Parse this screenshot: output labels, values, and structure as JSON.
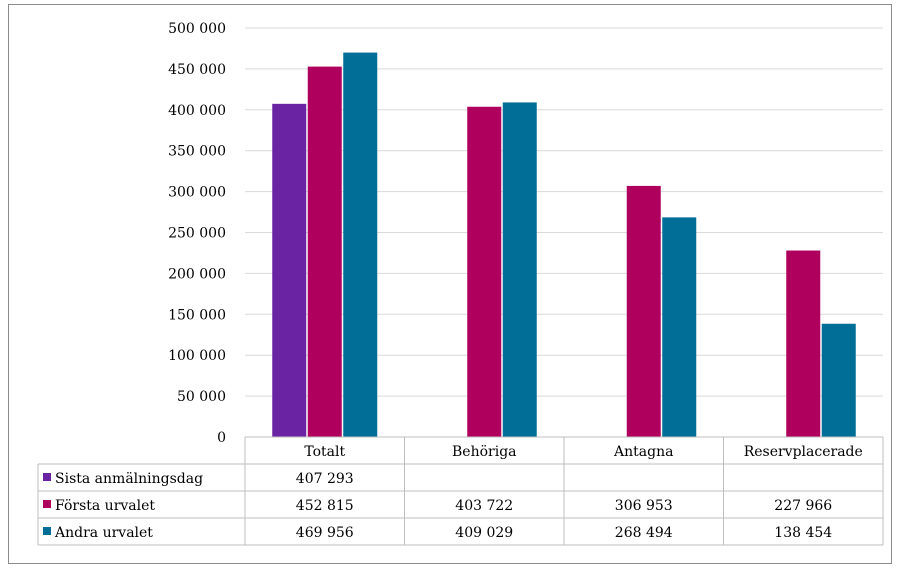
{
  "colors": {
    "grid": "#d9d9d9",
    "table_border": "#bfbfbf"
  },
  "chart_data": {
    "type": "bar",
    "categories": [
      "Totalt",
      "Behöriga",
      "Antagna",
      "Reservplacerade"
    ],
    "ylim": [
      0,
      500000
    ],
    "y_ticks": [
      0,
      50000,
      100000,
      150000,
      200000,
      250000,
      300000,
      350000,
      400000,
      450000,
      500000
    ],
    "y_tick_labels": [
      "0",
      "50 000",
      "100 000",
      "150 000",
      "200 000",
      "250 000",
      "300 000",
      "350 000",
      "400 000",
      "450 000",
      "500 000"
    ],
    "grid": true,
    "legend": "data-table",
    "series": [
      {
        "name": "Sista anmälningsdag",
        "color": "#6a23a3",
        "values": [
          407293,
          null,
          null,
          null
        ],
        "labels": [
          "407 293",
          "",
          "",
          ""
        ]
      },
      {
        "name": "Första urvalet",
        "color": "#b0005e",
        "values": [
          452815,
          403722,
          306953,
          227966
        ],
        "labels": [
          "452 815",
          "403 722",
          "306 953",
          "227 966"
        ]
      },
      {
        "name": "Andra urvalet",
        "color": "#006e96",
        "values": [
          469956,
          409029,
          268494,
          138454
        ],
        "labels": [
          "469 956",
          "409 029",
          "268 494",
          "138 454"
        ]
      }
    ]
  }
}
